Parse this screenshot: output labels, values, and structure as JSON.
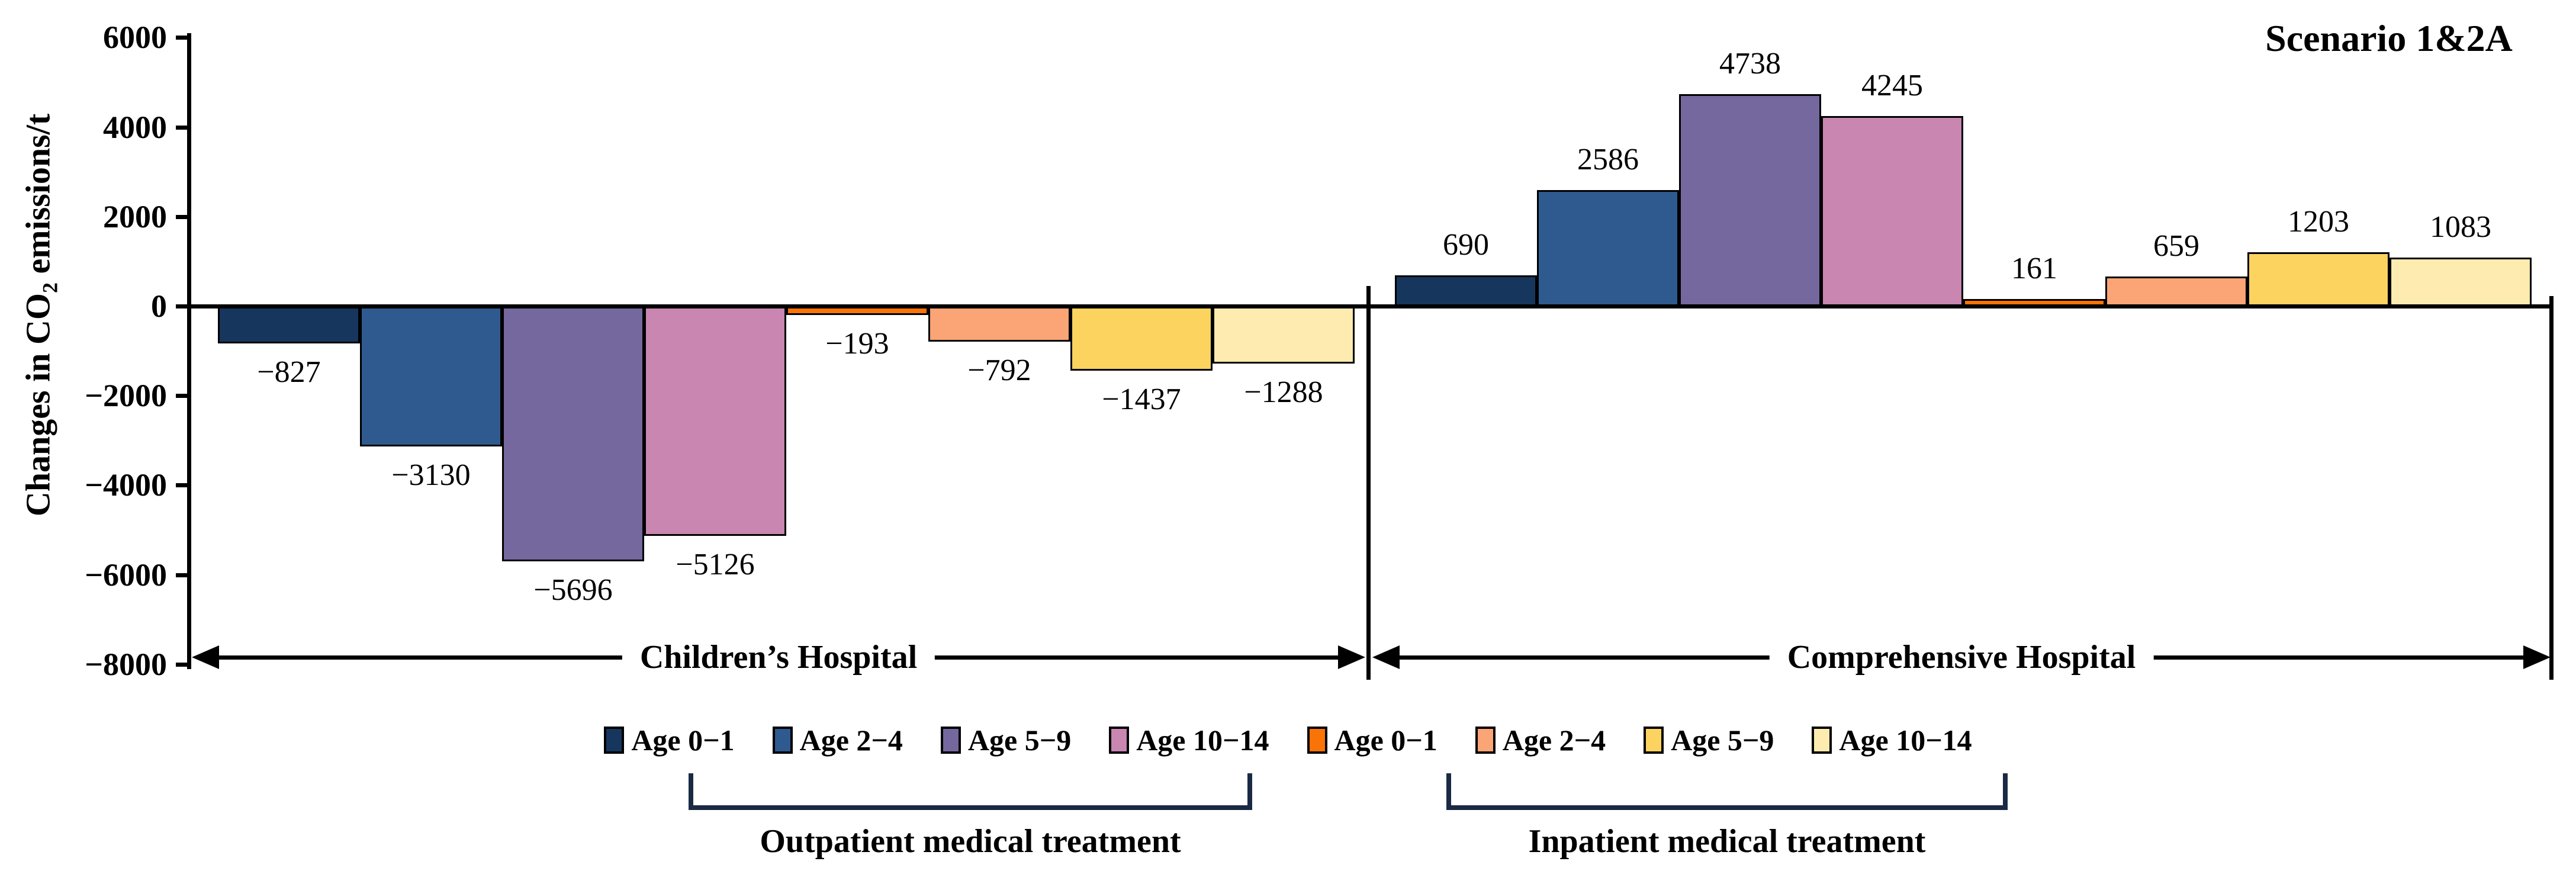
{
  "chart_data": {
    "type": "bar",
    "title": "Scenario 1&2A",
    "ylabel_prefix": "Changes in CO",
    "ylabel_sub": "2",
    "ylabel_suffix": " emissions/t",
    "ylim": [
      -8000,
      6000
    ],
    "ytick_step": 2000,
    "ytick_values": [
      6000,
      4000,
      2000,
      0,
      -2000,
      -4000,
      -6000,
      -8000
    ],
    "yticks": [
      "6000",
      "4000",
      "2000",
      "0",
      "−2000",
      "−4000",
      "−6000",
      "−8000"
    ],
    "grid": false,
    "legend_position": "bottom",
    "ages": [
      "Age 0−1",
      "Age 2−4",
      "Age 5−9",
      "Age 10−14"
    ],
    "age_colors": {
      "outpatient": [
        "#17365D",
        "#2E5A8F",
        "#75689F",
        "#C886B1"
      ],
      "inpatient": [
        "#FA7306",
        "#FBA475",
        "#FCD35F",
        "#FDEBAF"
      ]
    },
    "treatments": [
      {
        "label": "Outpatient medical treatment"
      },
      {
        "label": "Inpatient medical treatment"
      }
    ],
    "groups": [
      {
        "hospital": "Children’s Hospital",
        "outpatient_values": [
          -827,
          -3130,
          -5696,
          -5126
        ],
        "inpatient_values": [
          -193,
          -792,
          -1437,
          -1288
        ]
      },
      {
        "hospital": "Comprehensive Hospital",
        "outpatient_values": [
          690,
          2586,
          4738,
          4245
        ],
        "inpatient_values": [
          161,
          659,
          1203,
          1083
        ]
      }
    ],
    "accent_colors": {
      "bracket": "#1A2A44",
      "axis": "#000000"
    }
  }
}
